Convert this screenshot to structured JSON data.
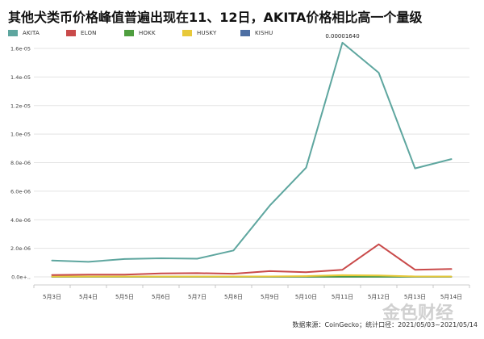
{
  "title": "其他犬类币价格峰值普遍出现在11、12日，AKITA价格相比高一个量级",
  "source": "数据来源：CoinGecko；统计口径：2021/05/03~2021/05/14",
  "watermark": "金色财经",
  "chart_data": {
    "type": "line",
    "title": "其他犬类币价格峰值普遍出现在11、12日，AKITA价格相比高一个量级",
    "xlabel": "",
    "ylabel": "",
    "categories": [
      "5月3日",
      "5月4日",
      "5月5日",
      "5月6日",
      "5月7日",
      "5月8日",
      "5月9日",
      "5月10日",
      "5月11日",
      "5月12日",
      "5月13日",
      "5月14日"
    ],
    "ylim": [
      0,
      1.6e-05
    ],
    "yticks": [
      "0.0e+..",
      "2.0e-06",
      "4.0e-06",
      "6.0e-06",
      "8.0e-06",
      "1.0e-05",
      "1.2e-05",
      "1.4e-05",
      "1.6e-05"
    ],
    "grid": true,
    "legend": "top-left",
    "series": [
      {
        "name": "AKITA",
        "color": "#5ea69f",
        "values": [
          1.15e-06,
          1.05e-06,
          1.25e-06,
          1.3e-06,
          1.27e-06,
          1.85e-06,
          5e-06,
          7.65e-06,
          1.64e-05,
          1.43e-05,
          7.6e-06,
          8.25e-06
        ]
      },
      {
        "name": "ELON",
        "color": "#c94a4a",
        "values": [
          1.3e-07,
          1.5e-07,
          1.6e-07,
          2.4e-07,
          2.6e-07,
          2.2e-07,
          4e-07,
          3.3e-07,
          5e-07,
          2.28e-06,
          5e-07,
          5.5e-07
        ]
      },
      {
        "name": "HOKK",
        "color": "#4f9e3f",
        "values": [
          1e-08,
          1e-08,
          1e-08,
          1e-08,
          1e-08,
          1e-08,
          1e-08,
          1e-08,
          1e-08,
          1e-08,
          1e-08,
          1e-08
        ]
      },
      {
        "name": "HUSKY",
        "color": "#e8c93a",
        "values": [
          2e-08,
          2e-08,
          2e-08,
          2e-08,
          2e-08,
          2e-08,
          3e-08,
          5e-08,
          1.2e-07,
          1e-07,
          3e-08,
          2e-08
        ]
      },
      {
        "name": "KISHU",
        "color": "#4d6fa3",
        "values": [
          0,
          0,
          0,
          0,
          0,
          0,
          0,
          0,
          0,
          0,
          0,
          0
        ]
      }
    ],
    "annotations": [
      {
        "series": "AKITA",
        "category": "5月11日",
        "text": "0.00001640"
      }
    ]
  }
}
